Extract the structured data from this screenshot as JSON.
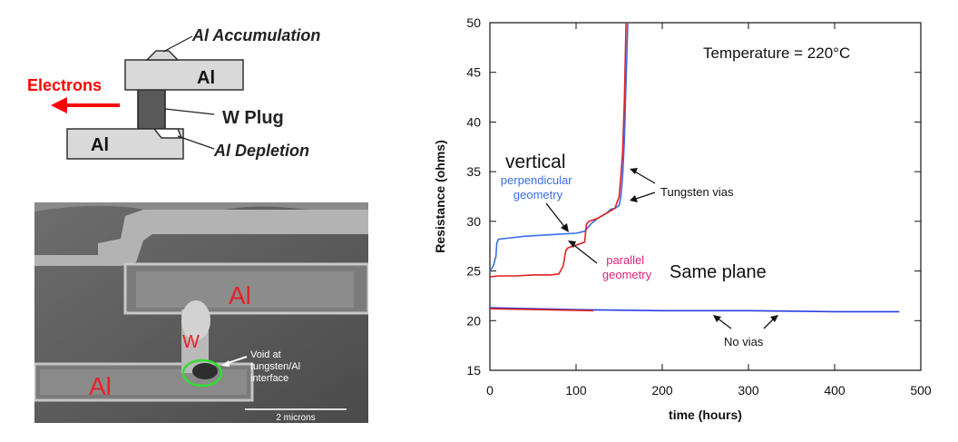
{
  "diagram": {
    "label_accumulation": "Al Accumulation",
    "label_depletion": "Al Depletion",
    "label_top_al": "Al",
    "label_bottom_al": "Al",
    "label_w_plug": "W Plug",
    "label_electrons": "Electrons",
    "colors": {
      "electrons": "#ff0000",
      "metal": "#d9d9d9",
      "plug": "#595959"
    }
  },
  "micrograph": {
    "annotation_al_top": "Al",
    "annotation_al_bottom": "Al",
    "annotation_w": "W",
    "void_label": [
      "Void at",
      "tungsten/Al",
      "interface"
    ],
    "scale_bar": "2 microns",
    "colors": {
      "annotation": "#e8202a",
      "void_circle": "#33dd33"
    }
  },
  "chart_data": {
    "type": "line",
    "xlabel": "time (hours)",
    "ylabel": "Resistance (ohms)",
    "xlim": [
      0,
      500
    ],
    "ylim": [
      15,
      50
    ],
    "xticks": [
      0,
      100,
      200,
      300,
      400,
      500
    ],
    "yticks": [
      15,
      20,
      25,
      30,
      35,
      40,
      45,
      50
    ],
    "grid": false,
    "annotations": {
      "temperature": "Temperature = 220°C",
      "vertical": "vertical",
      "perpendicular": [
        "perpendicular",
        "geometry"
      ],
      "parallel": [
        "parallel",
        "geometry"
      ],
      "same_plane": "Same plane",
      "tungsten_vias": "Tungsten vias",
      "no_vias": "No vias"
    },
    "series": [
      {
        "color": "#3a6fe8",
        "x": [
          0,
          4,
          7,
          8,
          10,
          20,
          40,
          60,
          80,
          100,
          110,
          118,
          125,
          135,
          140,
          145,
          150,
          152,
          154,
          156,
          158,
          160
        ],
        "y": [
          25.0,
          25.5,
          26.5,
          27.8,
          28.2,
          28.3,
          28.5,
          28.6,
          28.7,
          28.8,
          29.0,
          29.8,
          30.3,
          30.8,
          31.2,
          31.3,
          31.6,
          32.5,
          34.5,
          38.0,
          44.0,
          50.0
        ]
      },
      {
        "color": "#e02020",
        "x": [
          0,
          10,
          30,
          50,
          70,
          80,
          85,
          88,
          90,
          100,
          110,
          112,
          115,
          125,
          135,
          145,
          150,
          152,
          154,
          156,
          158
        ],
        "y": [
          24.4,
          24.5,
          24.5,
          24.6,
          24.6,
          24.7,
          25.5,
          27.0,
          27.3,
          27.6,
          27.9,
          29.7,
          30.0,
          30.3,
          30.8,
          31.3,
          32.5,
          34.5,
          37.0,
          42.0,
          50.0
        ]
      },
      {
        "color": "#2a3ee0",
        "x": [
          0,
          100,
          200,
          300,
          400,
          475
        ],
        "y": [
          21.3,
          21.1,
          21.0,
          21.0,
          20.9,
          20.9
        ]
      },
      {
        "color": "#e02020",
        "x": [
          0,
          60,
          120
        ],
        "y": [
          21.2,
          21.1,
          21.0
        ]
      }
    ]
  }
}
